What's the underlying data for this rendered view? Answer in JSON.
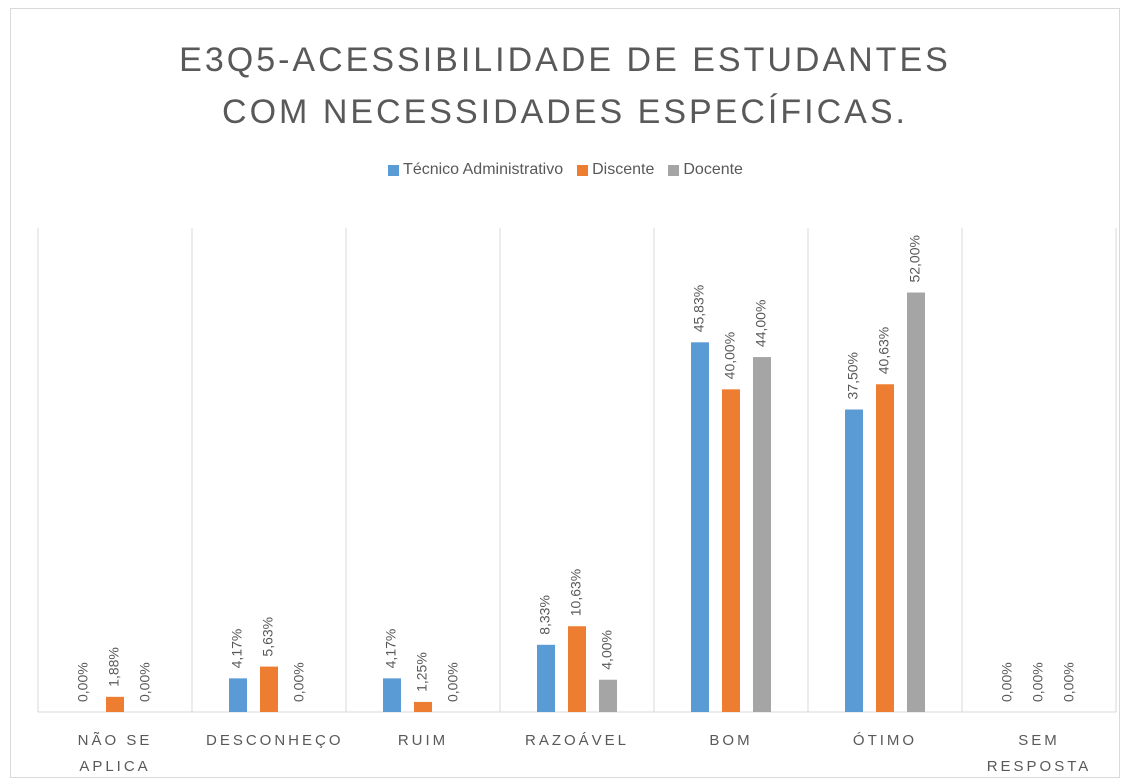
{
  "chart_data": {
    "type": "bar",
    "title": "E3Q5-ACESSIBILIDADE DE ESTUDANTES COM NECESSIDADES ESPECÍFICAS.",
    "categories": [
      "NÃO SE APLICA",
      "DESCONHEÇO",
      "RUIM",
      "RAZOÁVEL",
      "BOM",
      "ÓTIMO",
      "SEM RESPOSTA"
    ],
    "series": [
      {
        "name": "Técnico Administrativo",
        "color": "#5b9bd5",
        "values": [
          0,
          4.17,
          4.17,
          8.33,
          45.83,
          37.5,
          0
        ],
        "value_labels": [
          "0,00%",
          "4,17%",
          "4,17%",
          "8,33%",
          "45,83%",
          "37,50%",
          "0,00%"
        ]
      },
      {
        "name": "Discente",
        "color": "#ed7d31",
        "values": [
          1.88,
          5.63,
          1.25,
          10.63,
          40,
          40.63,
          0
        ],
        "value_labels": [
          "1,88%",
          "5,63%",
          "1,25%",
          "10,63%",
          "40,00%",
          "40,63%",
          "0,00%"
        ]
      },
      {
        "name": "Docente",
        "color": "#a5a5a5",
        "values": [
          0,
          0,
          0,
          4,
          44,
          52,
          0
        ],
        "value_labels": [
          "0,00%",
          "0,00%",
          "0,00%",
          "4,00%",
          "44,00%",
          "52,00%",
          "0,00%"
        ]
      }
    ],
    "ylim": [
      0,
      60
    ]
  }
}
